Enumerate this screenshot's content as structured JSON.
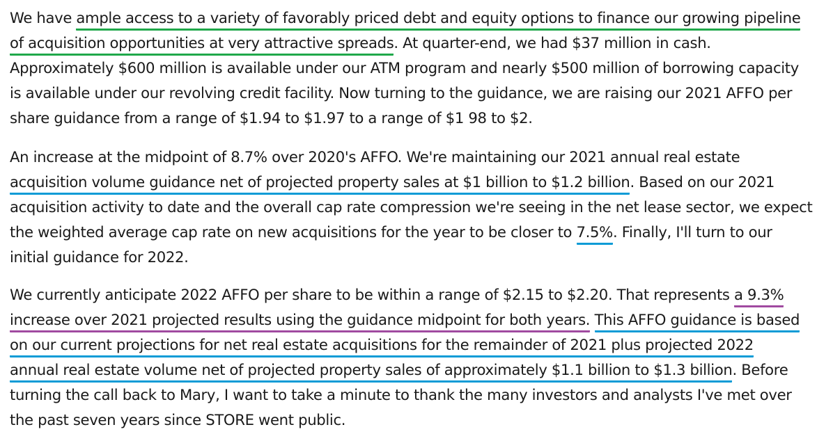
{
  "paragraphs": [
    {
      "lines": [
        [
          {
            "text": "We have "
          },
          {
            "text": "ample access to a variety of favorably priced debt and equity options to finance our growing pipeline",
            "underline": "#1fa84a"
          }
        ],
        [
          {
            "text": "of acquisition opportunities at very attractive spreads",
            "underline": "#1fa84a"
          },
          {
            "text": ". At quarter-end, we had $37 million in cash."
          }
        ],
        [
          {
            "text": "Approximately $600 million is available under our ATM program and nearly $500 million of borrowing capacity"
          }
        ],
        [
          {
            "text": "is available under our revolving credit facility. Now turning to the guidance, we are raising our 2021 AFFO per"
          }
        ],
        [
          {
            "text": "share guidance from a range of $1.94 to $1.97 to a range of $1 98 to $2."
          }
        ]
      ]
    },
    {
      "lines": [
        [
          {
            "text": "An increase at the midpoint of 8.7% over 2020's AFFO. We're maintaining our 2021 annual real estate"
          }
        ],
        [
          {
            "text": "acquisition volume guidance net of projected property sales at $1 billion to $1.2 billion",
            "underline": "#0a9bd6"
          },
          {
            "text": ". Based on our 2021"
          }
        ],
        [
          {
            "text": "acquisition activity to date and the overall cap rate compression we're seeing in the net lease sector, we expect"
          }
        ],
        [
          {
            "text": "the weighted average cap rate on new acquisitions for the year to be closer to "
          },
          {
            "text": "7.5%",
            "underline": "#0a9bd6"
          },
          {
            "text": ". Finally, I'll turn to our"
          }
        ],
        [
          {
            "text": "initial guidance for 2022."
          }
        ]
      ]
    },
    {
      "lines": [
        [
          {
            "text": "We currently anticipate 2022 AFFO per share to be within a range of $2.15 to $2.20. That represents "
          },
          {
            "text": "a 9.3%",
            "underline": "#a04aa0"
          }
        ],
        [
          {
            "text": "increase over 2021 projected results using the guidance midpoint for both years.",
            "underline": "#a04aa0"
          },
          {
            "text": " "
          },
          {
            "text": "This AFFO guidance is based",
            "underline": "#0a9bd6"
          }
        ],
        [
          {
            "text": "on our current projections for net real estate acquisitions for the remainder of 2021 plus projected 2022",
            "underline": "#0a9bd6"
          }
        ],
        [
          {
            "text": "annual real estate volume net of projected property sales of approximately $1.1 billion to $1.3 billion",
            "underline": "#0a9bd6"
          },
          {
            "text": ". Before"
          }
        ],
        [
          {
            "text": "turning the call back to Mary, I want to take a minute to thank the many investors and analysts I've met over"
          }
        ],
        [
          {
            "text": "the past seven years since STORE went public."
          }
        ]
      ]
    }
  ]
}
